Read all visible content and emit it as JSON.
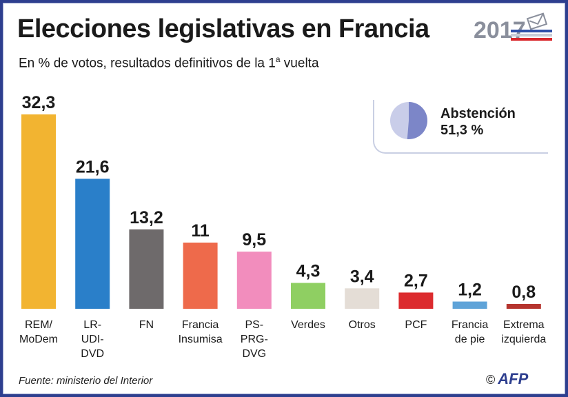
{
  "header": {
    "title": "Elecciones legislativas en Francia",
    "subtitle_main": "En % de votos, resultados definitivos de la 1",
    "subtitle_sup": "a",
    "subtitle_end": " vuelta",
    "year_logo": "2017"
  },
  "abstention": {
    "label": "Abstención",
    "value_text": "51,3 %",
    "value": 51.3,
    "colors": {
      "filled": "#7c86c8",
      "rest": "#c9cde9"
    }
  },
  "footer": {
    "source": "Fuente: ministerio del Interior",
    "copyright": "©",
    "agency": "AFP"
  },
  "chart_data": {
    "type": "bar",
    "title": "Elecciones legislativas en Francia",
    "subtitle": "En % de votos, resultados definitivos de la 1ª vuelta",
    "categories": [
      [
        "REM/",
        "MoDem"
      ],
      [
        "LR-",
        "UDI-",
        "DVD"
      ],
      [
        "FN"
      ],
      [
        "Francia",
        "Insumisa"
      ],
      [
        "PS-",
        "PRG-",
        "DVG"
      ],
      [
        "Verdes"
      ],
      [
        "Otros"
      ],
      [
        "PCF"
      ],
      [
        "Francia",
        "de pie"
      ],
      [
        "Extrema",
        "izquierda"
      ]
    ],
    "values": [
      32.3,
      21.6,
      13.2,
      11,
      9.5,
      4.3,
      3.4,
      2.7,
      1.2,
      0.8
    ],
    "value_labels": [
      "32,3",
      "21,6",
      "13,2",
      "11",
      "9,5",
      "4,3",
      "3,4",
      "2,7",
      "1,2",
      "0,8"
    ],
    "colors": [
      "#f2b431",
      "#2a7fc9",
      "#6e6a6b",
      "#ee6a4b",
      "#f28dbd",
      "#8fcf62",
      "#e4ddd6",
      "#dc2b2e",
      "#5fa3d8",
      "#b5342e"
    ],
    "ylim": [
      0,
      32.3
    ],
    "grid": false,
    "legend": "none"
  }
}
